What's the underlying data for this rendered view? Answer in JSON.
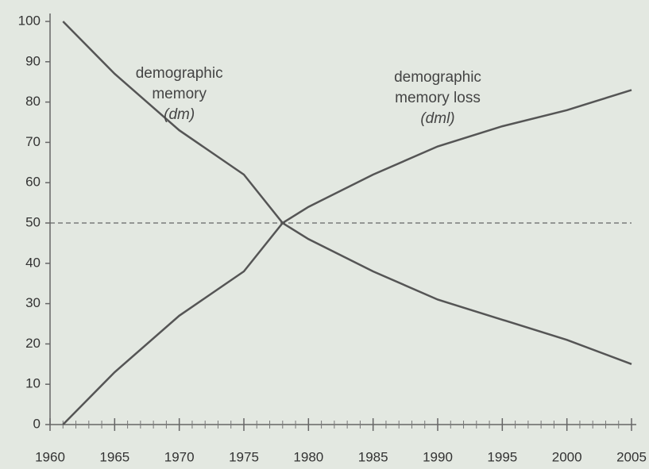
{
  "chart_data": {
    "type": "line",
    "x": [
      1961,
      1965,
      1970,
      1975,
      1978,
      1980,
      1985,
      1990,
      1995,
      2000,
      2005
    ],
    "series": [
      {
        "name": "demographic memory (dm)",
        "color": "#555555",
        "values": [
          100,
          87,
          73,
          62,
          50,
          46,
          38,
          31,
          26,
          21,
          15
        ]
      },
      {
        "name": "demographic memory loss (dml)",
        "color": "#555555",
        "values": [
          0,
          13,
          27,
          38,
          50,
          54,
          62,
          69,
          74,
          78,
          83
        ]
      }
    ],
    "annotations": [
      {
        "lines": [
          "demographic",
          "memory",
          "(dm)"
        ],
        "x": 1970,
        "y": 87
      },
      {
        "lines": [
          "demographic",
          "memory loss",
          "(dml)"
        ],
        "x": 1990,
        "y": 86
      }
    ],
    "reference_line": 50,
    "xlim": [
      1960,
      2005
    ],
    "xticks": [
      1960,
      1965,
      1970,
      1975,
      1980,
      1985,
      1990,
      1995,
      2000,
      2005
    ],
    "ylim": [
      0,
      100
    ],
    "yticks": [
      0,
      10,
      20,
      30,
      40,
      50,
      60,
      70,
      80,
      90,
      100
    ]
  }
}
